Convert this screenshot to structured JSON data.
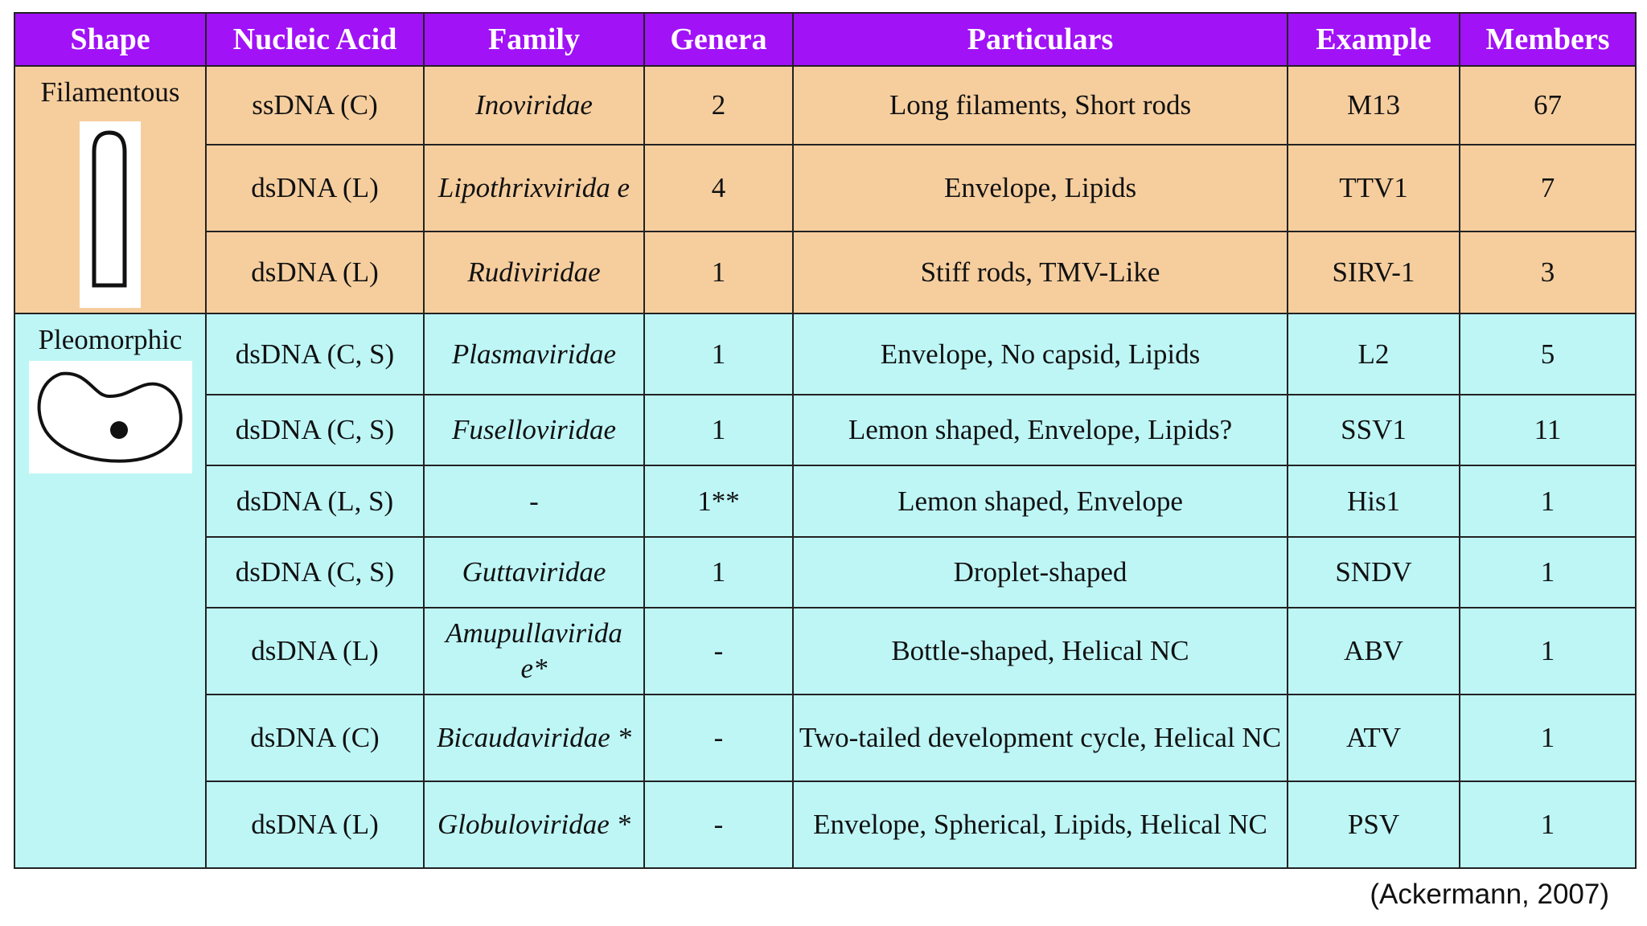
{
  "table": {
    "headers": [
      "Shape",
      "Nucleic Acid",
      "Family",
      "Genera",
      "Particulars",
      "Example",
      "Members"
    ],
    "groups": [
      {
        "shape": "Filamentous",
        "shape_icon": "rod-shape-icon",
        "rows": [
          {
            "nucleic_acid": "ssDNA (C)",
            "family": "Inoviridae",
            "genera": "2",
            "particulars": "Long filaments, Short rods",
            "example": "M13",
            "members": "67"
          },
          {
            "nucleic_acid": "dsDNA (L)",
            "family": "Lipothrixvirida e",
            "genera": "4",
            "particulars": "Envelope, Lipids",
            "example": "TTV1",
            "members": "7"
          },
          {
            "nucleic_acid": "dsDNA (L)",
            "family": "Rudiviridae",
            "genera": "1",
            "particulars": "Stiff rods, TMV-Like",
            "example": "SIRV-1",
            "members": "3"
          }
        ]
      },
      {
        "shape": "Pleomorphic",
        "shape_icon": "pleomorphic-shape-icon",
        "rows": [
          {
            "nucleic_acid": "dsDNA (C, S)",
            "family": "Plasmaviridae",
            "genera": "1",
            "particulars": "Envelope, No capsid, Lipids",
            "example": "L2",
            "members": "5"
          },
          {
            "nucleic_acid": "dsDNA (C, S)",
            "family": "Fuselloviridae",
            "genera": "1",
            "particulars": "Lemon shaped, Envelope, Lipids?",
            "example": "SSV1",
            "members": "11"
          },
          {
            "nucleic_acid": "dsDNA (L, S)",
            "family": "-",
            "genera": "1**",
            "particulars": "Lemon shaped, Envelope",
            "example": "His1",
            "members": "1"
          },
          {
            "nucleic_acid": "dsDNA (C, S)",
            "family": "Guttaviridae",
            "genera": "1",
            "particulars": "Droplet-shaped",
            "example": "SNDV",
            "members": "1"
          },
          {
            "nucleic_acid": "dsDNA (L)",
            "family": "Amupullavirida e*",
            "genera": "-",
            "particulars": "Bottle-shaped, Helical NC",
            "example": "ABV",
            "members": "1"
          },
          {
            "nucleic_acid": "dsDNA (C)",
            "family": "Bicaudaviridae *",
            "genera": "-",
            "particulars": "Two-tailed development cycle, Helical NC",
            "example": "ATV",
            "members": "1"
          },
          {
            "nucleic_acid": "dsDNA (L)",
            "family": "Globuloviridae *",
            "genera": "-",
            "particulars": "Envelope, Spherical, Lipids, Helical NC",
            "example": "PSV",
            "members": "1"
          }
        ]
      }
    ]
  },
  "citation": "(Ackermann, 2007)",
  "colors": {
    "header_bg": "#a112f7",
    "header_text": "#ffffff",
    "filamentous_bg": "#f6ce9e",
    "pleomorphic_bg": "#bef6f6",
    "border": "#222222"
  }
}
